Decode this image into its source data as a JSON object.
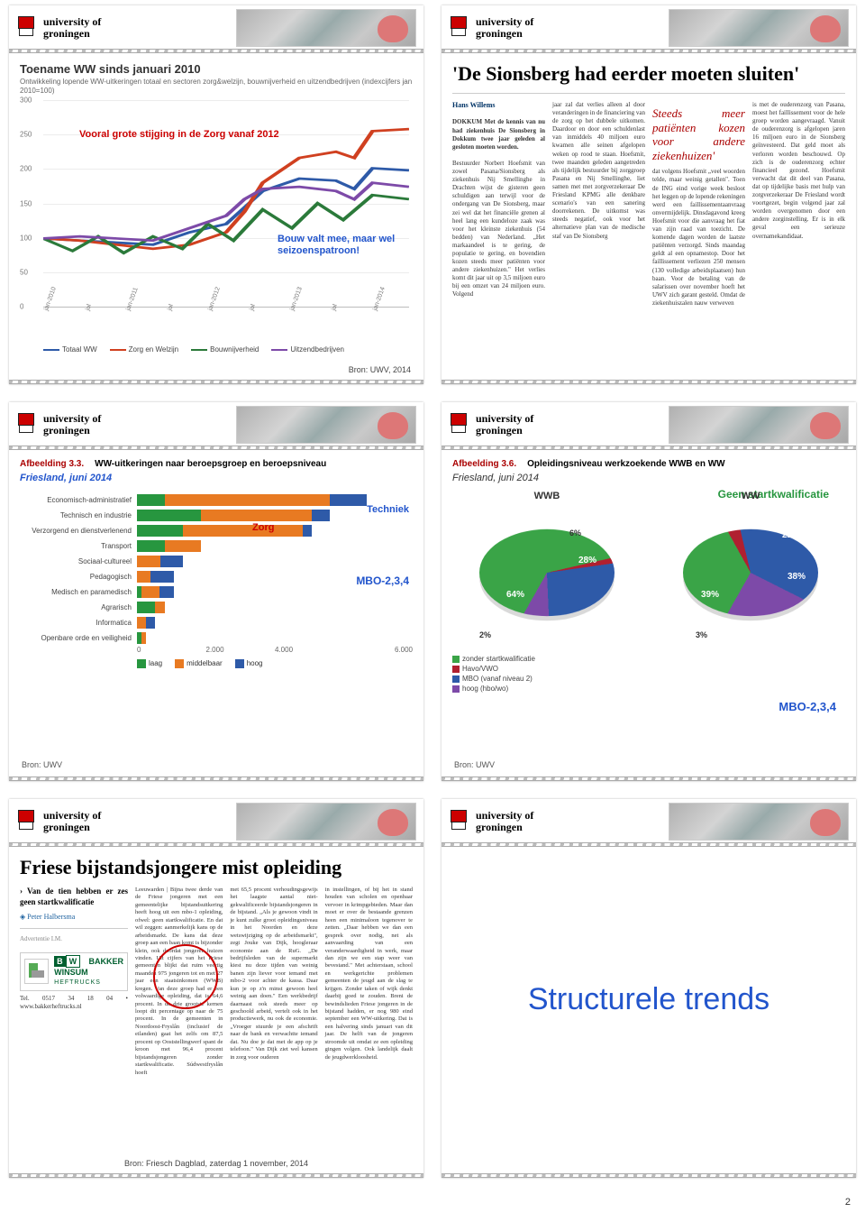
{
  "university": {
    "line1": "university of",
    "line2": "groningen"
  },
  "page_number": "2",
  "slide1": {
    "title": "Toename WW sinds januari 2010",
    "subtitle": "Ontwikkeling lopende WW-uitkeringen totaal en sectoren zorg&welzijn, bouwnijverheid en uitzendbedrijven (indexcijfers jan 2010=100)",
    "yticks": [
      "300",
      "250",
      "200",
      "150",
      "100",
      "50",
      "0"
    ],
    "xticks": [
      "jan-2010",
      "jul",
      "jan-2011",
      "jul",
      "jan-2012",
      "jul",
      "jan-2013",
      "jul",
      "jan-2014"
    ],
    "legend": {
      "totaal": "Totaal WW",
      "zorg": "Zorg en Welzijn",
      "bouw": "Bouwnijverheid",
      "uitzend": "Uitzendbedrijven"
    },
    "colors": {
      "totaal": "#2e5aa8",
      "zorg": "#d04020",
      "bouw": "#2b7a3a",
      "uitzend": "#7d4aa8"
    },
    "anno_red": "Vooral grote stijging in de Zorg vanaf 2012",
    "anno_blue": "Bouw valt mee, maar wel seizoenspatroon!",
    "source": "Bron: UWV, 2014"
  },
  "slide2": {
    "headline": "'De Sionsberg had eerder moeten sluiten'",
    "byline": "Hans Willems",
    "quote": "Steeds meer patiënten kozen voor andere ziekenhuizen'",
    "lead": "DOKKUM Met de kennis van nu had ziekenhuis De Sionsberg in Dokkum twee jaar geleden al gesloten moeten worden.",
    "body": "Bestuurder Norbert Hoefsmit van zowel Pasana/Sionsberg als ziekenhuis Nij Smellinghe in Drachten wijst de gisteren geen schuldigen aan terwijl voor de ondergang van De Sionsberg, maar zei wel dat het financiële grenen al heel lang een kundeloze zaak was voor het kleinste ziekenhuis (54 bedden) van Nederland. „Het markaandeel is te gering, de populatie te gering, en bovendien kozen steeds meer patiënten voor andere ziekenhuizen.\" Het verlies komt dit jaar uit op 3,5 miljoen euro bij een omzet van 24 miljoen euro. Volgend jaar zal dat verlies alleen al door veranderingen in de financiering van de zorg op het dubbele uitkomen. Daardoor en door een schuldenlast van inmiddels 40 miljoen euro kwamen alle seinen afgelopen weken op rood te staan. Hoefsmit, twee maanden geleden aangetreden als tijdelijk bestuurder bij zorggroep Pasana en Nij Smellinghe, liet samen met met zorgverzekeraar De Friesland KPMG alle denkbare scenario's van een sanering doorrekenen. De uitkomst was steeds negatief, ook voor het alternatieve plan van de medische staf van De Sionsberg dat volgens Hoefsmit „veel woorden telde, maar weinig getallen\". Toen de ING eind vorige week besloot het leggen op de lopende rekeningen werd een faillissementaanvraag onvermijdelijk. Dinsdagavond kreeg Hoefsmit voor die aanvraag het fiat van zijn raad van toezicht. De komende dagen worden de laatste patiënten verzorgd. Sinds maandag geldt al een opnamestop. Door het faillissement verliezen 250 mensen (130 volledige arbeidsplaatsen) hun baan. Voor de betaling van de salarissen over november hoeft het UWV zich garant gesteld. Omdat de ziekenhuiszalen nauw verweven is met de ouderenzorg van Pasana, moest het faillissement voor de hele groep worden aangevraagd. Vanuit de ouderenzorg is afgelopen jaren 16 miljoen euro in de Sionsberg geïnvesteerd. Dat geld moet als verloren worden beschouwd. Op zich is de ouderenzorg echter financieel gezond. Hoefsmit verwacht dat dit deel van Pasana, dat op tijdelijke basis met hulp van zorgverzekeraar De Friesland wordt voortgezet, begin volgend jaar zal worden overgenomen door een andere zorginstelling. Er is in elk geval een serieuze overnamekandidaat."
  },
  "slide3": {
    "afb_lbl": "Afbeelding 3.3.",
    "afb_title": "WW-uitkeringen naar beroepsgroep en beroepsniveau",
    "subtitle": "Friesland, juni 2014",
    "categories": [
      "Economisch-administratief",
      "Technisch en industrie",
      "Verzorgend en dienstverlenend",
      "Transport",
      "Sociaal-cultureel",
      "Pedagogisch",
      "Medisch en paramedisch",
      "Agrarisch",
      "Informatica",
      "Openbare orde en veiligheid"
    ],
    "segs": [
      {
        "laag": 6,
        "mid": 36,
        "hoog": 8
      },
      {
        "laag": 14,
        "mid": 24,
        "hoog": 4
      },
      {
        "laag": 10,
        "mid": 26,
        "hoog": 2
      },
      {
        "laag": 6,
        "mid": 8,
        "hoog": 0
      },
      {
        "laag": 0,
        "mid": 5,
        "hoog": 5
      },
      {
        "laag": 0,
        "mid": 3,
        "hoog": 5
      },
      {
        "laag": 1,
        "mid": 4,
        "hoog": 3
      },
      {
        "laag": 4,
        "mid": 2,
        "hoog": 0
      },
      {
        "laag": 0,
        "mid": 2,
        "hoog": 2
      },
      {
        "laag": 1,
        "mid": 1,
        "hoog": 0
      }
    ],
    "xticks": [
      "0",
      "2.000",
      "4.000",
      "6.000"
    ],
    "colors": {
      "laag": "#27963f",
      "mid": "#e87a22",
      "hoog": "#2e5aa8"
    },
    "legend": {
      "laag": "laag",
      "mid": "middelbaar",
      "hoog": "hoog"
    },
    "anno_zorg": "Zorg",
    "anno_tech": "Techniek",
    "anno_mbo": "MBO-2,3,4",
    "source": "Bron: UWV"
  },
  "slide4": {
    "afb_lbl": "Afbeelding 3.6.",
    "afb_title": "Opleidingsniveau werkzoekende WWB en WW",
    "subtitle": "Friesland, juni 2014",
    "anno_green": "Geen startkwalificatie",
    "anno_mbo": "MBO-2,3,4",
    "pie_wwb": {
      "title": "WWB",
      "zonder": 64,
      "havo": 2,
      "mbo": 28,
      "hoog": 6,
      "labels": {
        "zonder": "64%",
        "mbo": "28%",
        "hoog": "6%",
        "havo": "2%"
      }
    },
    "pie_ww": {
      "title": "WW",
      "zonder": 39,
      "havo": 3,
      "mbo": 38,
      "hoog": 21,
      "labels": {
        "zonder": "39%",
        "mbo": "38%",
        "hoog": "21%",
        "havo": "3%"
      }
    },
    "colors": {
      "zonder": "#3aa447",
      "havo": "#b02030",
      "mbo": "#2e5aa8",
      "hoog": "#7d4aa8"
    },
    "legend": {
      "zonder": "zonder startkwalificatie",
      "havo": "Havo/VWO",
      "mbo": "MBO (vanaf niveau 2)",
      "hoog": "hoog (hbo/wo)"
    },
    "source": "Bron: UWV"
  },
  "slide5": {
    "headline": "Friese bijstandsjongere mist opleiding",
    "bullet": "Van de tien hebben er zes geen startkwalificatie",
    "author": "Peter Halbersma",
    "body": "Leeuwarden | Bijna twee derde van de Friese jongeren met een gemeentelijke bijstandsuitkering heeft hoog uit een mbo-1 opleiding, ofwel: geen startkwalificatie. En dat wil zeggen: aanmerkelijk kans op de arbeidsmarkt. De kans dat deze groep aan een baan komt is bijzonder klein, ook doordat jongeren huizen vinden. Uit cijfers van het Friese gemeenten blijkt dat ruim veertig maanden 975 jongeren tot en met 27 jaar een staatsinkomen (WWB) kregen. Van deze groep had er een volwaardige opleiding, dat is 64,6 procent. In de drie grootste kernen loopt dit percentage op naar de 75 procent. In de gemeenten in Noordoost-Fryslân (inclusief de eilanden) gaat het zelfs om 87,5 procent op Ooststellingwerf spant de kroon met 96,4 procent bijstandsjongeren zonder startkwalificatie. Súdwestfryslân hoeft met 65,5 procent verhoudingsgewijs het laagste aantal niet-gekwalificeerde bijstandsjongeren in de bijstand. „Als je gewoon vindt in je kunt zulke groot opleidingsniveau in het Noorden en deze wetswijziging op de arbeidsmarkt\", zegt Jouke van Dijk, hoogleraar economie aan de RuG. „De bedrijfsleden van de supermarkt kiest nu deze tijden van weinig banen zijn liever voor iemand met mbo-2 voor achter de kassa. Daar kun je op z'n minst gewoon heel weinig aan doen.\" Een werkbedrijf daarnaast ook steeds meer op geschoold arbeid, vertelt ook in het productiewerk, nu ook de economie. „Vroeger stuurde je een afschrift naar de bank en verwachtte iemand dat. Nu doe je dat met de app op je telefoon.\" Van Dijk ziet wel kansen in zorg voor ouderen in instellingen, of bij het in stand houden van scholen en openbaar vervoer in krimpgebieden. Maar dan moet er over de bestaande grenzen heen een minimaloon tegenover te zetten. „Daar hebben we dan een gesprek over nodig, net als aanvaarding van een veranderwaardigheid in werk, maar dan zijn we een stap weer van bevestand.\" Met achterstaan, school en werkgerichte problemen gemeenten de jeugd aan de slag te krijgen. Zonder taken of wijk denkt daarbij goed te zouden. Breni de bewindslieden Friese jongeren in de bijstand hadden, er nog 980 eind september een WW-uitkering. Dat is een halvering sinds januari van dit jaar. De helft van de jongeren stroomde uit omdat ze een opleiding gingen volgen. Ook landelijk daalt de jeugdwerkloosheid.",
    "ad_brand": "BAKKER WINSUM",
    "ad_sub": "HEFTRUCKS",
    "ad_contact": "Tel. 0517 34 18 04 • www.bakkerheftrucks.nl",
    "source": "Bron: Friesch Dagblad, zaterdag 1 november, 2014"
  },
  "slide6": {
    "title": "Structurele trends"
  }
}
